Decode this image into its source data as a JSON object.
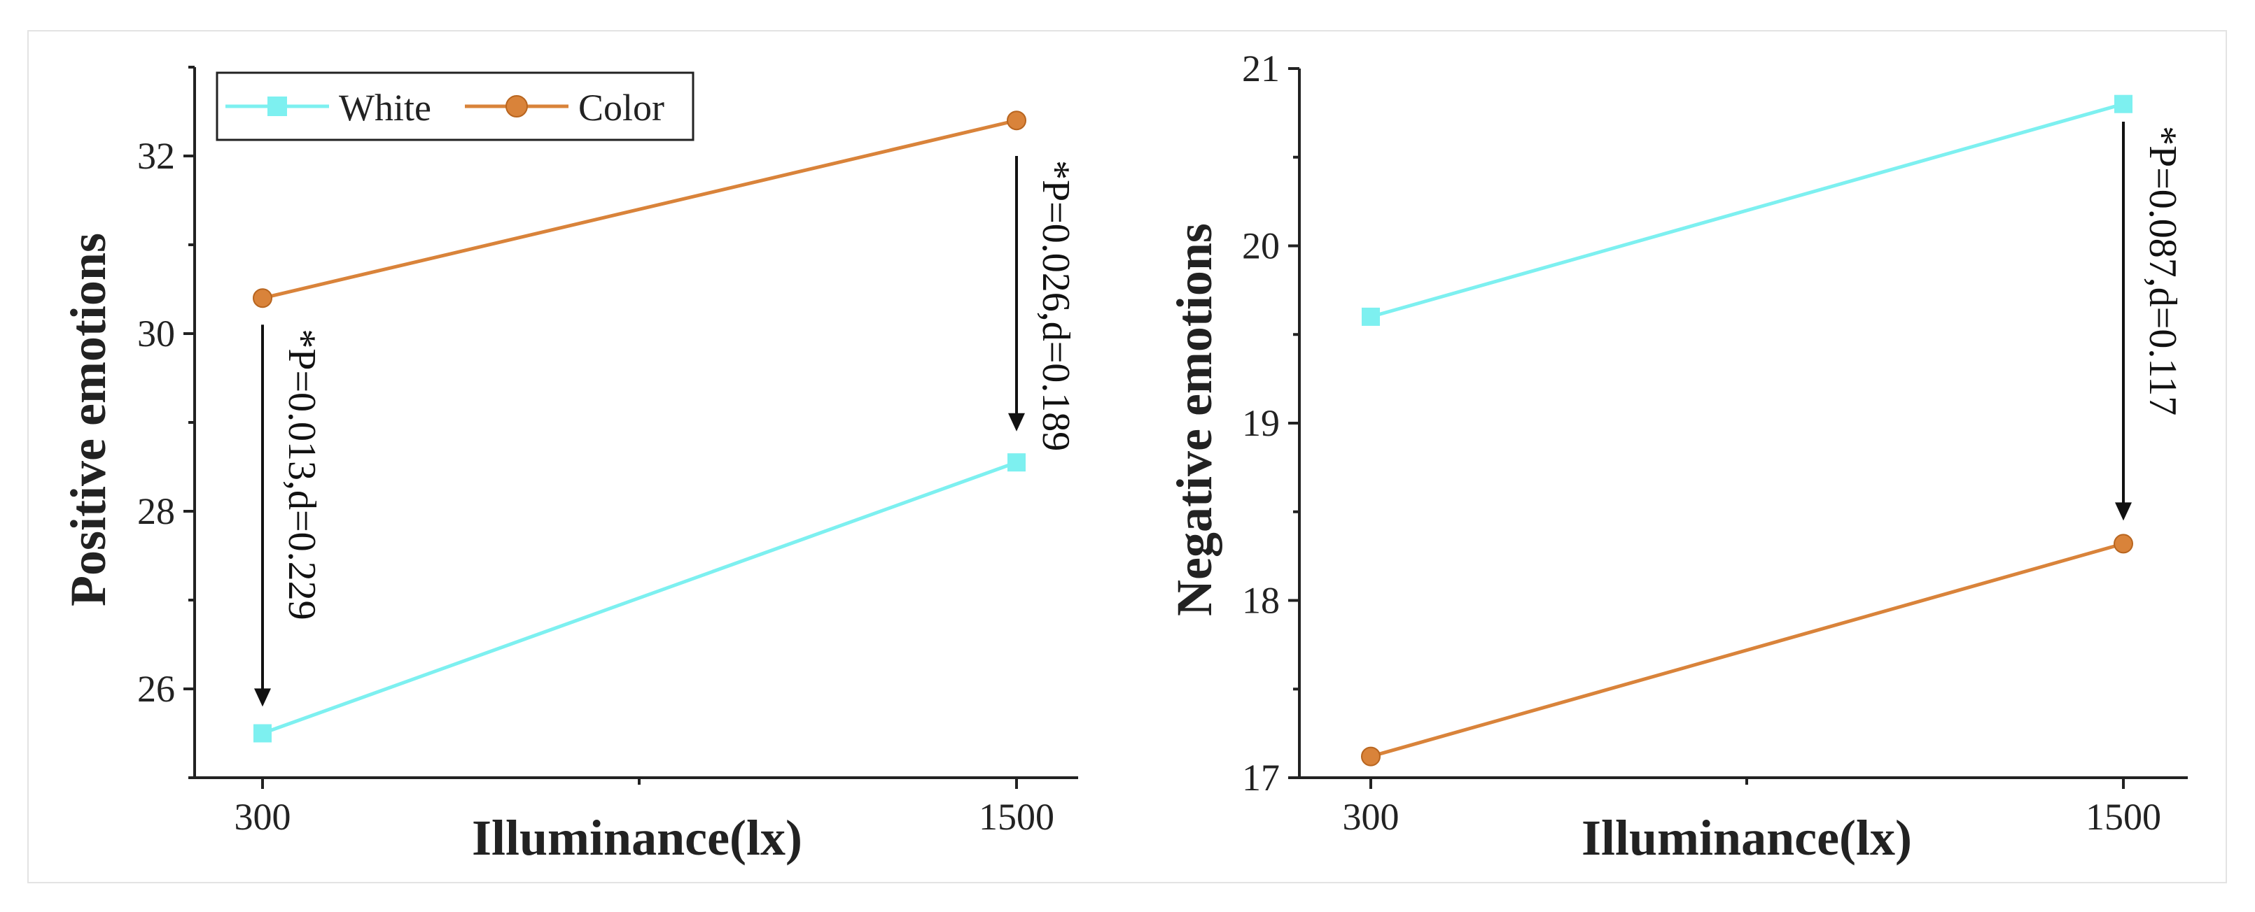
{
  "colors": {
    "White": "#7df0f0",
    "Color": "#d9833a"
  },
  "chart_data": [
    {
      "type": "line",
      "title": "",
      "xlabel": "Illuminance(lx)",
      "ylabel": "Positive emotions",
      "categories": [
        "300",
        "1500"
      ],
      "ylim": [
        25,
        33
      ],
      "yticks": [
        26,
        28,
        30,
        32
      ],
      "legend": "top-left",
      "series": [
        {
          "name": "White",
          "marker": "square",
          "values": [
            25.5,
            28.55
          ]
        },
        {
          "name": "Color",
          "marker": "circle",
          "values": [
            30.4,
            32.4
          ]
        }
      ],
      "annotations": [
        {
          "category": "300",
          "from": 30.1,
          "to": 25.8,
          "text": "*P=0.013,d=0.229"
        },
        {
          "category": "1500",
          "from": 32.0,
          "to": 28.9,
          "text": "*P=0.026,d=0.189"
        }
      ]
    },
    {
      "type": "line",
      "title": "",
      "xlabel": "Illuminance(lx)",
      "ylabel": "Negative emotions",
      "categories": [
        "300",
        "1500"
      ],
      "ylim": [
        17,
        21
      ],
      "yticks": [
        17,
        18,
        19,
        20,
        21
      ],
      "legend": "none",
      "series": [
        {
          "name": "White",
          "marker": "square",
          "values": [
            19.6,
            20.8
          ]
        },
        {
          "name": "Color",
          "marker": "circle",
          "values": [
            17.12,
            18.32
          ]
        }
      ],
      "annotations": [
        {
          "category": "1500",
          "from": 20.7,
          "to": 18.45,
          "text": "*P=0.087,d=0.117"
        }
      ]
    }
  ]
}
